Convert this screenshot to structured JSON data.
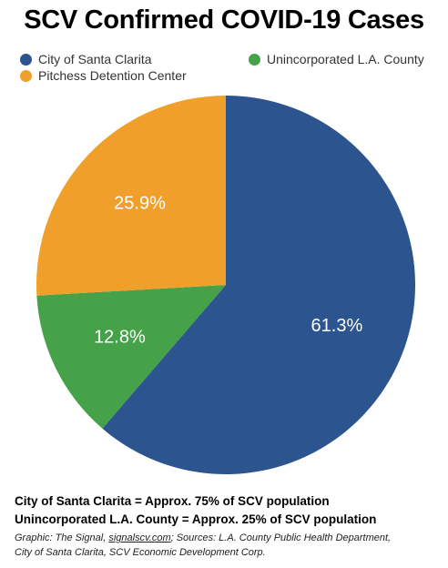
{
  "title": "SCV Confirmed COVID-19 Cases",
  "chart_data": {
    "type": "pie",
    "title": "SCV Confirmed COVID-19 Cases",
    "slices": [
      {
        "name": "City of Santa Clarita",
        "value": 61.3,
        "label": "61.3%",
        "color": "#2c548f"
      },
      {
        "name": "Unincorporated L.A. County",
        "value": 12.8,
        "label": "12.8%",
        "color": "#45a249"
      },
      {
        "name": "Pitchess Detention Center",
        "value": 25.9,
        "label": "25.9%",
        "color": "#f0a02a"
      }
    ],
    "legend_placement": "top",
    "start_angle": "12 o'clock, clockwise"
  },
  "notes": {
    "line1": "City of Santa Clarita = Approx. 75% of SCV population",
    "line2": "Unincorporated L.A. County = Approx. 25% of SCV population"
  },
  "credits": {
    "graphic_prefix": "Graphic: The Signal, ",
    "link_text": "signalscv.com",
    "sources_line1": "; Sources: L.A. County Public Health Department,",
    "sources_line2": "City of Santa Clarita, SCV Economic Development Corp."
  }
}
